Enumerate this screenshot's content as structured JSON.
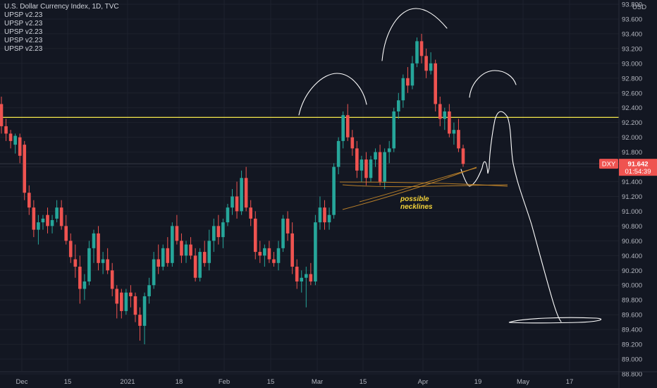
{
  "header": {
    "title": "U.S. Dollar Currency Index, 1D, TVC",
    "indicators": [
      "UPSP v2.23",
      "UPSP v2.23",
      "UPSP v2.23",
      "UPSP v2.23",
      "UPSP v2.23"
    ]
  },
  "colors": {
    "background": "#131722",
    "up": "#26a69a",
    "down": "#ef5350",
    "resistance": "#f5e84a",
    "neckline": "#c98a2a",
    "drawing": "#ffffff",
    "annotation": "#f5d43a"
  },
  "chart_data": {
    "type": "candlestick",
    "title": "U.S. Dollar Currency Index, 1D, TVC",
    "symbol": "DXY",
    "currency": "USD",
    "last_price": "91.642",
    "countdown": "01:54:39",
    "y_ticks": [
      "93.800",
      "93.600",
      "93.400",
      "93.200",
      "93.000",
      "92.800",
      "92.600",
      "92.400",
      "92.200",
      "92.000",
      "91.800",
      "91.600",
      "91.400",
      "91.200",
      "91.000",
      "90.800",
      "90.600",
      "90.400",
      "90.200",
      "90.000",
      "89.800",
      "89.600",
      "89.400",
      "89.200",
      "89.000",
      "88.800"
    ],
    "ylim": [
      88.8,
      93.8
    ],
    "x_ticks": [
      "Dec",
      "15",
      "2021",
      "18",
      "Feb",
      "15",
      "Mar",
      "15",
      "Apr",
      "19",
      "May",
      "17"
    ],
    "resistance_level": 92.27,
    "annotation": [
      "possible",
      "necklines"
    ],
    "candles": [
      {
        "o": 92.45,
        "h": 92.55,
        "l": 92.05,
        "c": 92.15
      },
      {
        "o": 92.15,
        "h": 92.25,
        "l": 91.95,
        "c": 92.05
      },
      {
        "o": 92.05,
        "h": 92.1,
        "l": 91.85,
        "c": 91.95
      },
      {
        "o": 91.9,
        "h": 92.05,
        "l": 91.78,
        "c": 92.02
      },
      {
        "o": 92.0,
        "h": 92.05,
        "l": 91.65,
        "c": 91.75
      },
      {
        "o": 91.9,
        "h": 91.95,
        "l": 91.15,
        "c": 91.25
      },
      {
        "o": 91.25,
        "h": 91.35,
        "l": 90.95,
        "c": 91.05
      },
      {
        "o": 91.05,
        "h": 91.15,
        "l": 90.65,
        "c": 90.75
      },
      {
        "o": 90.75,
        "h": 90.95,
        "l": 90.55,
        "c": 90.85
      },
      {
        "o": 90.85,
        "h": 90.95,
        "l": 90.75,
        "c": 90.9
      },
      {
        "o": 90.95,
        "h": 91.05,
        "l": 90.7,
        "c": 90.8
      },
      {
        "o": 90.8,
        "h": 90.95,
        "l": 90.7,
        "c": 90.88
      },
      {
        "o": 90.9,
        "h": 91.15,
        "l": 90.85,
        "c": 91.05
      },
      {
        "o": 91.05,
        "h": 91.15,
        "l": 90.75,
        "c": 90.8
      },
      {
        "o": 90.8,
        "h": 90.95,
        "l": 90.55,
        "c": 90.6
      },
      {
        "o": 90.6,
        "h": 90.7,
        "l": 90.3,
        "c": 90.38
      },
      {
        "o": 90.35,
        "h": 90.55,
        "l": 90.1,
        "c": 90.25
      },
      {
        "o": 90.25,
        "h": 90.4,
        "l": 89.75,
        "c": 89.95
      },
      {
        "o": 89.95,
        "h": 90.15,
        "l": 89.8,
        "c": 90.05
      },
      {
        "o": 90.05,
        "h": 90.6,
        "l": 90.0,
        "c": 90.5
      },
      {
        "o": 90.5,
        "h": 90.75,
        "l": 90.3,
        "c": 90.7
      },
      {
        "o": 90.7,
        "h": 90.8,
        "l": 90.2,
        "c": 90.3
      },
      {
        "o": 90.3,
        "h": 90.45,
        "l": 90.15,
        "c": 90.35
      },
      {
        "o": 90.35,
        "h": 90.5,
        "l": 90.15,
        "c": 90.2
      },
      {
        "o": 90.2,
        "h": 90.3,
        "l": 89.85,
        "c": 89.95
      },
      {
        "o": 89.95,
        "h": 90.0,
        "l": 89.55,
        "c": 89.75
      },
      {
        "o": 89.9,
        "h": 89.95,
        "l": 89.55,
        "c": 89.65
      },
      {
        "o": 89.65,
        "h": 89.95,
        "l": 89.6,
        "c": 89.9
      },
      {
        "o": 89.9,
        "h": 90.0,
        "l": 89.7,
        "c": 89.85
      },
      {
        "o": 89.85,
        "h": 89.9,
        "l": 89.5,
        "c": 89.6
      },
      {
        "o": 89.6,
        "h": 89.7,
        "l": 89.25,
        "c": 89.45
      },
      {
        "o": 89.45,
        "h": 89.9,
        "l": 89.2,
        "c": 89.85
      },
      {
        "o": 89.85,
        "h": 90.1,
        "l": 89.75,
        "c": 90.0
      },
      {
        "o": 90.0,
        "h": 90.45,
        "l": 89.95,
        "c": 90.35
      },
      {
        "o": 90.35,
        "h": 90.55,
        "l": 90.15,
        "c": 90.25
      },
      {
        "o": 90.25,
        "h": 90.55,
        "l": 90.2,
        "c": 90.5
      },
      {
        "o": 90.5,
        "h": 90.65,
        "l": 90.25,
        "c": 90.3
      },
      {
        "o": 90.3,
        "h": 90.85,
        "l": 90.25,
        "c": 90.8
      },
      {
        "o": 90.8,
        "h": 90.95,
        "l": 90.55,
        "c": 90.6
      },
      {
        "o": 90.6,
        "h": 90.7,
        "l": 90.3,
        "c": 90.4
      },
      {
        "o": 90.4,
        "h": 90.6,
        "l": 90.3,
        "c": 90.55
      },
      {
        "o": 90.55,
        "h": 90.65,
        "l": 90.35,
        "c": 90.4
      },
      {
        "o": 90.4,
        "h": 90.5,
        "l": 90.05,
        "c": 90.1
      },
      {
        "o": 90.1,
        "h": 90.5,
        "l": 90.05,
        "c": 90.45
      },
      {
        "o": 90.45,
        "h": 90.6,
        "l": 90.25,
        "c": 90.3
      },
      {
        "o": 90.3,
        "h": 90.75,
        "l": 90.2,
        "c": 90.6
      },
      {
        "o": 90.6,
        "h": 90.9,
        "l": 90.45,
        "c": 90.8
      },
      {
        "o": 90.8,
        "h": 90.95,
        "l": 90.55,
        "c": 90.65
      },
      {
        "o": 90.65,
        "h": 90.9,
        "l": 90.5,
        "c": 90.85
      },
      {
        "o": 90.85,
        "h": 91.1,
        "l": 90.8,
        "c": 91.05
      },
      {
        "o": 91.05,
        "h": 91.3,
        "l": 90.95,
        "c": 91.2
      },
      {
        "o": 91.2,
        "h": 91.4,
        "l": 90.9,
        "c": 91.0
      },
      {
        "o": 91.0,
        "h": 91.55,
        "l": 90.95,
        "c": 91.45
      },
      {
        "o": 91.45,
        "h": 91.6,
        "l": 91.0,
        "c": 91.05
      },
      {
        "o": 91.05,
        "h": 91.15,
        "l": 90.8,
        "c": 90.9
      },
      {
        "o": 90.9,
        "h": 91.0,
        "l": 90.35,
        "c": 90.45
      },
      {
        "o": 90.45,
        "h": 90.6,
        "l": 90.3,
        "c": 90.4
      },
      {
        "o": 90.4,
        "h": 90.55,
        "l": 90.25,
        "c": 90.5
      },
      {
        "o": 90.5,
        "h": 90.6,
        "l": 90.3,
        "c": 90.35
      },
      {
        "o": 90.35,
        "h": 90.45,
        "l": 90.25,
        "c": 90.3
      },
      {
        "o": 90.3,
        "h": 90.6,
        "l": 90.2,
        "c": 90.5
      },
      {
        "o": 90.5,
        "h": 90.95,
        "l": 90.45,
        "c": 90.9
      },
      {
        "o": 90.9,
        "h": 91.0,
        "l": 90.6,
        "c": 90.7
      },
      {
        "o": 90.7,
        "h": 90.85,
        "l": 90.15,
        "c": 90.25
      },
      {
        "o": 90.25,
        "h": 90.35,
        "l": 89.95,
        "c": 90.05
      },
      {
        "o": 90.05,
        "h": 90.2,
        "l": 89.9,
        "c": 90.1
      },
      {
        "o": 90.1,
        "h": 90.25,
        "l": 89.7,
        "c": 90.15
      },
      {
        "o": 90.15,
        "h": 90.3,
        "l": 90.0,
        "c": 90.05
      },
      {
        "o": 90.05,
        "h": 90.95,
        "l": 90.0,
        "c": 90.85
      },
      {
        "o": 90.85,
        "h": 91.2,
        "l": 90.75,
        "c": 91.05
      },
      {
        "o": 91.05,
        "h": 91.15,
        "l": 90.75,
        "c": 90.85
      },
      {
        "o": 90.85,
        "h": 91.05,
        "l": 90.75,
        "c": 90.95
      },
      {
        "o": 90.95,
        "h": 91.65,
        "l": 90.9,
        "c": 91.6
      },
      {
        "o": 91.6,
        "h": 92.0,
        "l": 91.5,
        "c": 91.95
      },
      {
        "o": 91.95,
        "h": 92.35,
        "l": 91.85,
        "c": 92.3
      },
      {
        "o": 92.3,
        "h": 92.45,
        "l": 91.95,
        "c": 92.0
      },
      {
        "o": 92.0,
        "h": 92.1,
        "l": 91.75,
        "c": 91.85
      },
      {
        "o": 91.85,
        "h": 91.95,
        "l": 91.45,
        "c": 91.55
      },
      {
        "o": 91.55,
        "h": 91.75,
        "l": 91.4,
        "c": 91.7
      },
      {
        "o": 91.7,
        "h": 91.8,
        "l": 91.35,
        "c": 91.45
      },
      {
        "o": 91.45,
        "h": 91.75,
        "l": 91.4,
        "c": 91.7
      },
      {
        "o": 91.7,
        "h": 91.85,
        "l": 91.6,
        "c": 91.8
      },
      {
        "o": 91.8,
        "h": 91.9,
        "l": 91.35,
        "c": 91.4
      },
      {
        "o": 91.4,
        "h": 91.85,
        "l": 91.3,
        "c": 91.8
      },
      {
        "o": 91.8,
        "h": 91.95,
        "l": 91.65,
        "c": 91.85
      },
      {
        "o": 91.85,
        "h": 92.4,
        "l": 91.8,
        "c": 92.35
      },
      {
        "o": 92.35,
        "h": 92.6,
        "l": 92.25,
        "c": 92.5
      },
      {
        "o": 92.5,
        "h": 92.85,
        "l": 92.4,
        "c": 92.8
      },
      {
        "o": 92.8,
        "h": 92.95,
        "l": 92.6,
        "c": 92.7
      },
      {
        "o": 92.7,
        "h": 93.1,
        "l": 92.65,
        "c": 93.0
      },
      {
        "o": 93.0,
        "h": 93.35,
        "l": 92.95,
        "c": 93.3
      },
      {
        "o": 93.3,
        "h": 93.4,
        "l": 93.0,
        "c": 93.1
      },
      {
        "o": 93.1,
        "h": 93.2,
        "l": 92.8,
        "c": 92.9
      },
      {
        "o": 92.9,
        "h": 93.15,
        "l": 92.85,
        "c": 93.0
      },
      {
        "o": 93.0,
        "h": 93.05,
        "l": 92.35,
        "c": 92.45
      },
      {
        "o": 92.45,
        "h": 92.55,
        "l": 92.15,
        "c": 92.25
      },
      {
        "o": 92.25,
        "h": 92.4,
        "l": 92.1,
        "c": 92.35
      },
      {
        "o": 92.35,
        "h": 92.45,
        "l": 92.0,
        "c": 92.05
      },
      {
        "o": 92.05,
        "h": 92.2,
        "l": 91.9,
        "c": 92.1
      },
      {
        "o": 92.1,
        "h": 92.25,
        "l": 91.8,
        "c": 91.85
      },
      {
        "o": 91.85,
        "h": 91.9,
        "l": 91.6,
        "c": 91.64
      }
    ]
  }
}
